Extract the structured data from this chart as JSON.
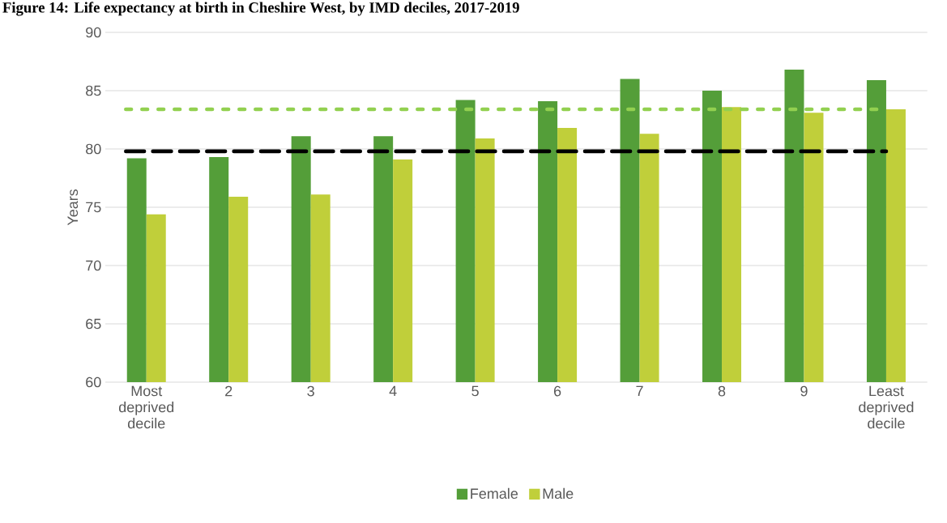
{
  "chart_data": {
    "type": "bar",
    "title": "Figure 14: Life expectancy at birth in Cheshire West, by IMD deciles, 2017-2019",
    "ylabel": "Years",
    "categories": [
      "Most deprived decile",
      "2",
      "3",
      "4",
      "5",
      "6",
      "7",
      "8",
      "9",
      "Least deprived decile"
    ],
    "series": [
      {
        "name": "Female",
        "color": "#549e39",
        "values": [
          79.2,
          79.3,
          81.1,
          81.1,
          84.2,
          84.1,
          86.0,
          85.0,
          86.8,
          85.9
        ]
      },
      {
        "name": "Male",
        "color": "#c0cf3a",
        "values": [
          74.4,
          75.9,
          76.1,
          79.1,
          80.9,
          81.8,
          81.3,
          83.6,
          83.1,
          83.4
        ]
      }
    ],
    "ref_lines": [
      {
        "axis": "y",
        "value": 83.4,
        "color": "#92d050",
        "line_style": "dotted"
      },
      {
        "axis": "y",
        "value": 79.8,
        "color": "#000000",
        "line_style": "dashed"
      }
    ],
    "ylim": [
      60,
      90
    ],
    "yticks": [
      60,
      65,
      70,
      75,
      80,
      85,
      90
    ],
    "grid": "y",
    "legend": "bottom"
  }
}
